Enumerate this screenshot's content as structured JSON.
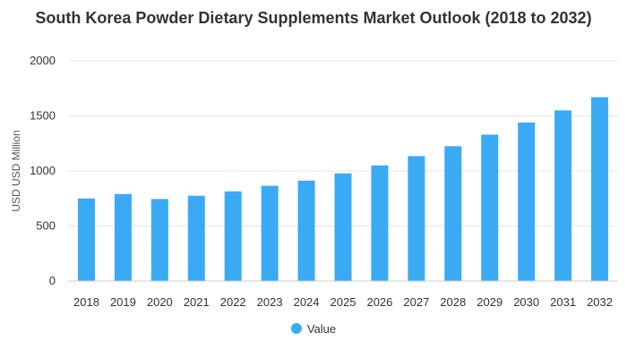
{
  "chart_data": {
    "type": "bar",
    "title": "South Korea Powder Dietary Supplements Market Outlook (2018 to 2032)",
    "ylabel": "USD USD Million",
    "xlabel": "",
    "categories": [
      "2018",
      "2019",
      "2020",
      "2021",
      "2022",
      "2023",
      "2024",
      "2025",
      "2026",
      "2027",
      "2028",
      "2029",
      "2030",
      "2031",
      "2032"
    ],
    "series": [
      {
        "name": "Value",
        "values": [
          750,
          790,
          745,
          775,
          815,
          865,
          912,
          978,
          1050,
          1135,
          1225,
          1330,
          1440,
          1550,
          1670
        ]
      }
    ],
    "ylim": [
      0,
      2000
    ],
    "yticks": [
      0,
      500,
      1000,
      1500,
      2000
    ],
    "grid": true,
    "legend_position": "bottom",
    "bar_color": "#3aaaf5"
  }
}
